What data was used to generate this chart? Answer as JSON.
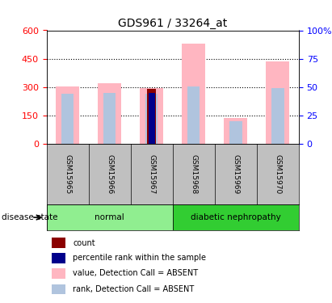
{
  "title": "GDS961 / 33264_at",
  "samples": [
    "GSM15965",
    "GSM15966",
    "GSM15967",
    "GSM15968",
    "GSM15969",
    "GSM15970"
  ],
  "groups": [
    {
      "name": "normal",
      "color": "#90EE90",
      "samples": [
        0,
        1,
        2
      ]
    },
    {
      "name": "diabetic nephropathy",
      "color": "#32CD32",
      "samples": [
        3,
        4,
        5
      ]
    }
  ],
  "ylim_left": [
    0,
    600
  ],
  "ylim_right": [
    0,
    100
  ],
  "yticks_left": [
    0,
    150,
    300,
    450,
    600
  ],
  "yticks_right": [
    0,
    25,
    50,
    75,
    100
  ],
  "pink_bars": [
    305,
    320,
    293,
    530,
    135,
    435
  ],
  "lavender_bars": [
    265,
    270,
    265,
    305,
    120,
    295
  ],
  "red_bars": [
    0,
    0,
    290,
    0,
    0,
    0
  ],
  "blue_bars": [
    0,
    0,
    268,
    0,
    0,
    0
  ],
  "bar_width": 0.35,
  "pink_color": "#FFB6C1",
  "lavender_color": "#B0C4DE",
  "red_color": "#8B0000",
  "blue_color": "#00008B",
  "left_axis_color": "red",
  "right_axis_color": "blue",
  "bg_label_row": "#C0C0C0",
  "disease_state_label": "disease state",
  "legend_items": [
    {
      "label": "count",
      "color": "#8B0000"
    },
    {
      "label": "percentile rank within the sample",
      "color": "#00008B"
    },
    {
      "label": "value, Detection Call = ABSENT",
      "color": "#FFB6C1"
    },
    {
      "label": "rank, Detection Call = ABSENT",
      "color": "#B0C4DE"
    }
  ]
}
